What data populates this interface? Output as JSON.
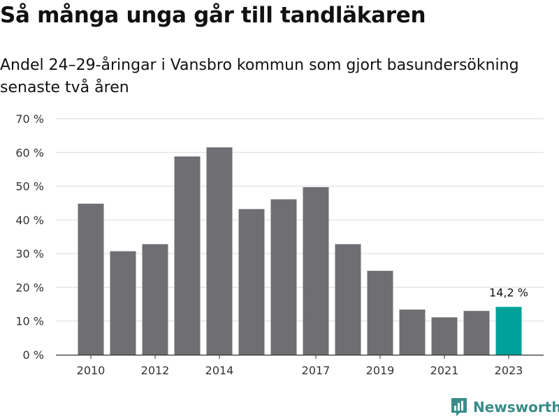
{
  "title": "Så många unga går till tandläkaren",
  "subtitle": "Andel 24–29-åringar i Vansbro kommun som gjort basundersökning senaste två åren",
  "brand": {
    "name": "Newsworthy",
    "icon": "newsworthy-logo-icon"
  },
  "colors": {
    "bar": "#6f6e72",
    "highlight": "#00a19a",
    "grid": "#d9d9d9",
    "axis": "#333333"
  },
  "chart_data": {
    "type": "bar",
    "x": [
      2010,
      2011,
      2012,
      2013,
      2014,
      2015,
      2016,
      2017,
      2018,
      2019,
      2020,
      2021,
      2022,
      2023
    ],
    "values": [
      44.8,
      30.7,
      32.8,
      58.8,
      61.5,
      43.2,
      46.1,
      49.7,
      32.8,
      24.9,
      13.4,
      11.1,
      13.0,
      14.2
    ],
    "xtick_labels": [
      "2010",
      "2012",
      "2014",
      "2017",
      "2019",
      "2021",
      "2023"
    ],
    "xtick_values": [
      2010,
      2012,
      2014,
      2017,
      2019,
      2021,
      2023
    ],
    "yticks": [
      0,
      10,
      20,
      30,
      40,
      50,
      60,
      70
    ],
    "ytick_labels": [
      "0 %",
      "10 %",
      "20 %",
      "30 %",
      "40 %",
      "50 %",
      "60 %",
      "70 %"
    ],
    "ylim": [
      0,
      70
    ],
    "highlight": {
      "x": 2023,
      "label": "14,2 %"
    },
    "grid": true,
    "xlabel": "",
    "ylabel": ""
  }
}
